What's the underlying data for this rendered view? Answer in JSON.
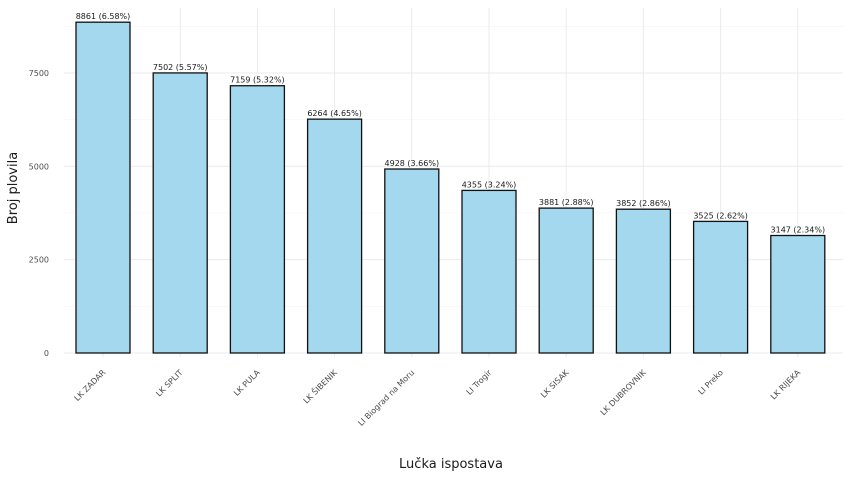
{
  "chart_data": {
    "type": "bar",
    "title": "",
    "xlabel": "Lučka ispostava",
    "ylabel": "Broj plovila",
    "categories": [
      "LK ZADAR",
      "LK SPLIT",
      "LK PULA",
      "LK ŠIBENIK",
      "LI Biograd na Moru",
      "LI Trogir",
      "LK SISAK",
      "LK DUBROVNIK",
      "LI Preko",
      "LK RIJEKA"
    ],
    "values": [
      8861,
      7502,
      7159,
      6264,
      4928,
      4355,
      3881,
      3852,
      3525,
      3147
    ],
    "percentages": [
      "6.58%",
      "5.57%",
      "5.32%",
      "4.65%",
      "3.66%",
      "3.24%",
      "2.88%",
      "2.86%",
      "2.62%",
      "2.34%"
    ],
    "bar_labels": [
      "8861 (6.58%)",
      "7502 (5.57%)",
      "7159 (5.32%)",
      "6264 (4.65%)",
      "4928 (3.66%)",
      "4355 (3.24%)",
      "3881 (2.88%)",
      "3852 (2.86%)",
      "3525 (2.62%)",
      "3147 (2.34%)"
    ],
    "yticks": [
      0,
      2500,
      5000,
      7500
    ],
    "ytick_labels": [
      "0",
      "2500",
      "5000",
      "7500"
    ],
    "ylim": [
      0,
      9300
    ],
    "grid": true,
    "legend": null,
    "colors": {
      "bar_fill": "#a3d8ef",
      "bar_edge": "#111111",
      "grid": "#ebebeb"
    }
  }
}
